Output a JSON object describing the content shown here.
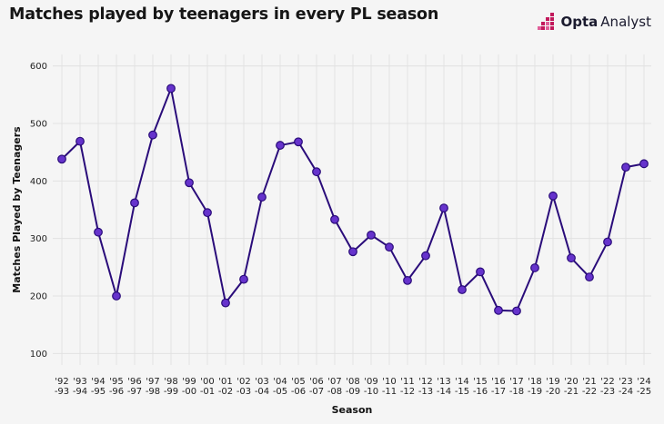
{
  "header": {
    "title": "Matches played by teenagers in every PL season",
    "logo_bold": "Opta",
    "logo_regular": "Analyst"
  },
  "colors": {
    "line": "#2a0c7a",
    "point_fill": "#6633cc",
    "point_stroke": "#2a0c7a",
    "grid": "#e2e2e2",
    "logo_accent": "#c2185b"
  },
  "chart_data": {
    "type": "line",
    "xlabel": "Season",
    "ylabel": "Matches Played by Teenagers",
    "ylim": [
      80,
      620
    ],
    "yticks": [
      100,
      200,
      300,
      400,
      500,
      600
    ],
    "grid": true,
    "categories": [
      [
        "'92",
        "-93"
      ],
      [
        "'93",
        "-94"
      ],
      [
        "'94",
        "-95"
      ],
      [
        "'95",
        "-96"
      ],
      [
        "'96",
        "-97"
      ],
      [
        "'97",
        "-98"
      ],
      [
        "'98",
        "-99"
      ],
      [
        "'99",
        "-00"
      ],
      [
        "'00",
        "-01"
      ],
      [
        "'01",
        "-02"
      ],
      [
        "'02",
        "-03"
      ],
      [
        "'03",
        "-04"
      ],
      [
        "'04",
        "-05"
      ],
      [
        "'05",
        "-06"
      ],
      [
        "'06",
        "-07"
      ],
      [
        "'07",
        "-08"
      ],
      [
        "'08",
        "-09"
      ],
      [
        "'09",
        "-10"
      ],
      [
        "'10",
        "-11"
      ],
      [
        "'11",
        "-12"
      ],
      [
        "'12",
        "-13"
      ],
      [
        "'13",
        "-14"
      ],
      [
        "'14",
        "-15"
      ],
      [
        "'15",
        "-16"
      ],
      [
        "'16",
        "-17"
      ],
      [
        "'17",
        "-18"
      ],
      [
        "'18",
        "-19"
      ],
      [
        "'19",
        "-20"
      ],
      [
        "'20",
        "-21"
      ],
      [
        "'21",
        "-22"
      ],
      [
        "'22",
        "-23"
      ],
      [
        "'23",
        "-24"
      ],
      [
        "'24",
        "-25"
      ]
    ],
    "values": [
      438,
      469,
      311,
      200,
      362,
      480,
      561,
      397,
      345,
      188,
      229,
      372,
      462,
      468,
      416,
      333,
      277,
      306,
      285,
      227,
      270,
      353,
      211,
      242,
      175,
      174,
      249,
      374,
      266,
      233,
      294,
      424,
      430
    ]
  }
}
